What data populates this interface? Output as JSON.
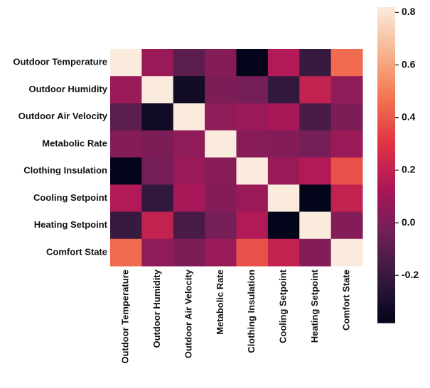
{
  "chart_data": {
    "type": "heatmap",
    "x_categories": [
      "Outdoor Temperature",
      "Outdoor Humidity",
      "Outdoor Air Velocity",
      "Metabolic Rate",
      "Clothing Insulation",
      "Cooling Setpoint",
      "Heating Setpoint",
      "Comfort State"
    ],
    "y_categories": [
      "Outdoor Temperature",
      "Outdoor Humidity",
      "Outdoor Air Velocity",
      "Metabolic Rate",
      "Clothing Insulation",
      "Cooling Setpoint",
      "Heating Setpoint",
      "Comfort State"
    ],
    "values": [
      [
        1,
        0.08,
        -0.1,
        0.02,
        -0.38,
        0.15,
        -0.2,
        0.45
      ],
      [
        0.08,
        1,
        -0.33,
        0.0,
        -0.02,
        -0.22,
        0.2,
        0.05
      ],
      [
        -0.1,
        -0.33,
        1,
        0.05,
        0.08,
        0.12,
        -0.15,
        0.0
      ],
      [
        0.02,
        0.0,
        0.05,
        1,
        0.03,
        0.02,
        -0.02,
        0.08
      ],
      [
        -0.38,
        -0.02,
        0.08,
        0.03,
        1,
        0.08,
        0.15,
        0.38
      ],
      [
        0.15,
        -0.22,
        0.12,
        0.02,
        0.08,
        1,
        -0.38,
        0.2
      ],
      [
        -0.2,
        0.2,
        -0.15,
        -0.02,
        0.15,
        -0.38,
        1,
        0.02
      ],
      [
        0.45,
        0.05,
        0.0,
        0.08,
        0.38,
        0.2,
        0.02,
        1
      ]
    ],
    "zlim": [
      -0.38,
      0.82
    ],
    "zticks": [
      -0.2,
      {
        "value": 0,
        "label": "0.0"
      },
      0.2,
      0.4,
      0.6,
      0.8
    ],
    "colormap": [
      "#03051a",
      "#35193e",
      "#701f57",
      "#ad1759",
      "#e13342",
      "#f37651",
      "#f6b48e",
      "#faebdd"
    ]
  }
}
